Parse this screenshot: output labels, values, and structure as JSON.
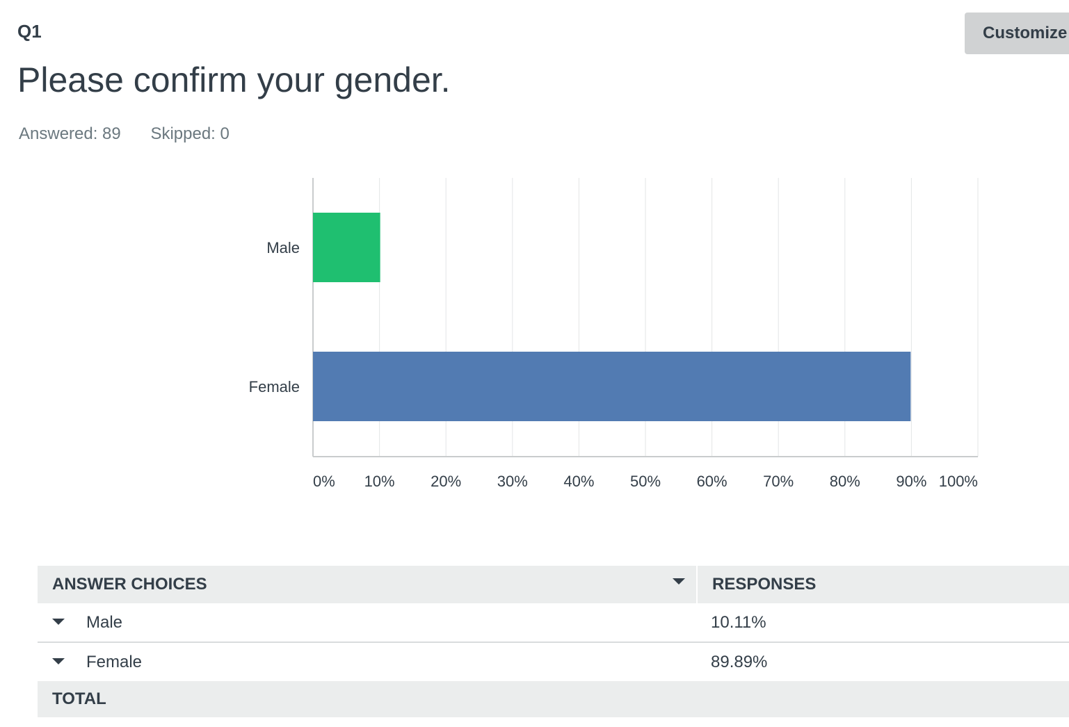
{
  "question": {
    "number": "Q1",
    "title": "Please confirm your gender.",
    "answered": "Answered: 89",
    "skipped": "Skipped: 0"
  },
  "toolbar": {
    "customize_label": "Customize"
  },
  "colors": {
    "male_bar": "#1fbf70",
    "female_bar": "#527bb2",
    "grid": "#e3e5e6",
    "axis": "#c9cccd"
  },
  "chart_data": {
    "type": "bar",
    "orientation": "horizontal",
    "categories": [
      "Male",
      "Female"
    ],
    "values": [
      10.11,
      89.89
    ],
    "xlim": [
      0,
      100
    ],
    "xticks": [
      "0%",
      "10%",
      "20%",
      "30%",
      "40%",
      "50%",
      "60%",
      "70%",
      "80%",
      "90%",
      "100%"
    ],
    "grid": true
  },
  "table": {
    "headers": {
      "choices": "ANSWER CHOICES",
      "responses": "RESPONSES"
    },
    "rows": [
      {
        "choice": "Male",
        "response": "10.11%"
      },
      {
        "choice": "Female",
        "response": "89.89%"
      }
    ],
    "total_label": "TOTAL"
  }
}
